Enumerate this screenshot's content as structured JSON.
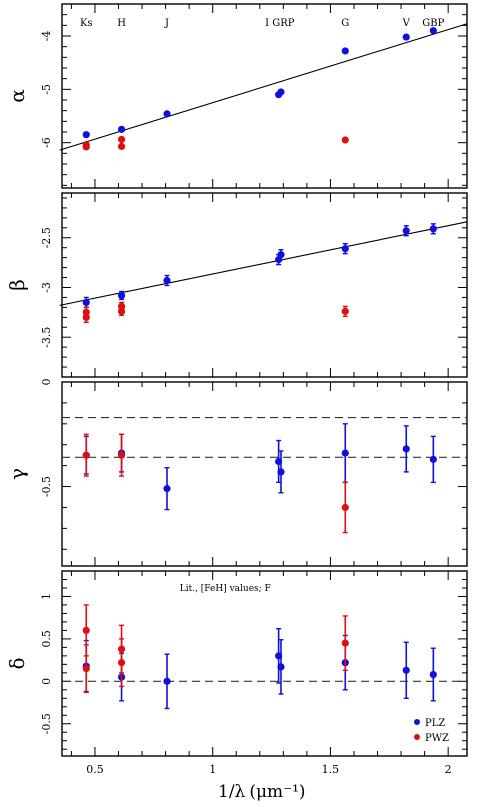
{
  "chart_data": [
    {
      "type": "scatter",
      "ylabel": "α",
      "ylim": [
        -6.85,
        -3.4
      ],
      "yticks": [
        -4,
        -5,
        -6
      ],
      "band_labels": [
        {
          "text": "Ks",
          "x": 0.463
        },
        {
          "text": "H",
          "x": 0.613
        },
        {
          "text": "J",
          "x": 0.806
        },
        {
          "text": "I GRP",
          "x": 1.285
        },
        {
          "text": "G",
          "x": 1.563
        },
        {
          "text": "V",
          "x": 1.822
        },
        {
          "text": "GBP",
          "x": 1.937
        }
      ],
      "fit_line": {
        "x": [
          0.35,
          2.08
        ],
        "y": [
          -6.14,
          -3.77
        ]
      },
      "series": [
        {
          "color": "#1010dd",
          "points": [
            [
              0.463,
              -5.85
            ],
            [
              0.613,
              -5.75
            ],
            [
              0.806,
              -5.46
            ],
            [
              1.28,
              -5.1
            ],
            [
              1.29,
              -5.05
            ],
            [
              1.563,
              -4.28
            ],
            [
              1.822,
              -4.02
            ],
            [
              1.937,
              -3.9
            ]
          ]
        },
        {
          "color": "#dd1010",
          "points": [
            [
              0.463,
              -6.08
            ],
            [
              0.463,
              -6.04
            ],
            [
              0.613,
              -6.07
            ],
            [
              0.613,
              -5.94
            ],
            [
              1.563,
              -5.95
            ]
          ]
        }
      ]
    },
    {
      "type": "scatter",
      "ylabel": "β",
      "ylim": [
        -3.9,
        -2.05
      ],
      "yticks": [
        -2.5,
        -3,
        -3.5
      ],
      "fit_line": {
        "x": [
          0.35,
          2.08
        ],
        "y": [
          -3.18,
          -2.34
        ]
      },
      "series": [
        {
          "color": "#1010dd",
          "points": [
            [
              0.463,
              -3.15,
              0.05
            ],
            [
              0.613,
              -3.08,
              0.04
            ],
            [
              0.806,
              -2.93,
              0.05
            ],
            [
              1.28,
              -2.72,
              0.05
            ],
            [
              1.29,
              -2.67,
              0.05
            ],
            [
              1.563,
              -2.61,
              0.05
            ],
            [
              1.822,
              -2.43,
              0.05
            ],
            [
              1.937,
              -2.41,
              0.05
            ]
          ]
        },
        {
          "color": "#dd1010",
          "points": [
            [
              0.463,
              -3.25,
              0.05
            ],
            [
              0.463,
              -3.3,
              0.05
            ],
            [
              0.613,
              -3.19,
              0.04
            ],
            [
              0.613,
              -3.24,
              0.04
            ],
            [
              1.563,
              -3.24,
              0.05
            ]
          ]
        }
      ]
    },
    {
      "type": "scatter",
      "ylabel": "γ",
      "ylim": [
        -0.88,
        0.0
      ],
      "yticks": [
        0,
        -0.5
      ],
      "hlines": [
        -0.17,
        -0.36
      ],
      "series": [
        {
          "color": "#1010dd",
          "points": [
            [
              0.463,
              -0.35,
              0.09
            ],
            [
              0.613,
              -0.34,
              0.09
            ],
            [
              0.806,
              -0.51,
              0.1
            ],
            [
              1.28,
              -0.38,
              0.1
            ],
            [
              1.29,
              -0.43,
              0.1
            ],
            [
              1.563,
              -0.34,
              0.14
            ],
            [
              1.822,
              -0.32,
              0.11
            ],
            [
              1.937,
              -0.37,
              0.11
            ]
          ]
        },
        {
          "color": "#dd1010",
          "points": [
            [
              0.463,
              -0.35,
              0.1
            ],
            [
              0.613,
              -0.35,
              0.1
            ],
            [
              1.563,
              -0.6,
              0.12
            ]
          ]
        }
      ]
    },
    {
      "type": "scatter",
      "ylabel": "δ",
      "ylim": [
        -0.88,
        1.3
      ],
      "yticks": [
        1,
        0.5,
        0,
        -0.5
      ],
      "hlines": [
        0
      ],
      "annotation": "Lit., [FeH] values; F",
      "xlabel": "1/λ",
      "xunit": "(μm⁻¹)",
      "xlim": [
        0.36,
        2.08
      ],
      "xticks": [
        0.5,
        1,
        1.5,
        2
      ],
      "legend": {
        "position": "bottom-right",
        "entries": [
          {
            "name": "PLZ",
            "color": "#1010dd"
          },
          {
            "name": "PWZ",
            "color": "#dd1010"
          }
        ]
      },
      "series": [
        {
          "color": "#1010dd",
          "points": [
            [
              0.463,
              0.18,
              0.3
            ],
            [
              0.613,
              0.05,
              0.28
            ],
            [
              0.806,
              0.0,
              0.32
            ],
            [
              1.28,
              0.3,
              0.32
            ],
            [
              1.29,
              0.17,
              0.32
            ],
            [
              1.563,
              0.22,
              0.32
            ],
            [
              1.822,
              0.13,
              0.33
            ],
            [
              1.937,
              0.08,
              0.31
            ]
          ]
        },
        {
          "color": "#dd1010",
          "points": [
            [
              0.463,
              0.6,
              0.3
            ],
            [
              0.463,
              0.15,
              0.28
            ],
            [
              0.613,
              0.38,
              0.28
            ],
            [
              0.613,
              0.22,
              0.28
            ],
            [
              1.563,
              0.45,
              0.32
            ]
          ]
        }
      ]
    }
  ]
}
